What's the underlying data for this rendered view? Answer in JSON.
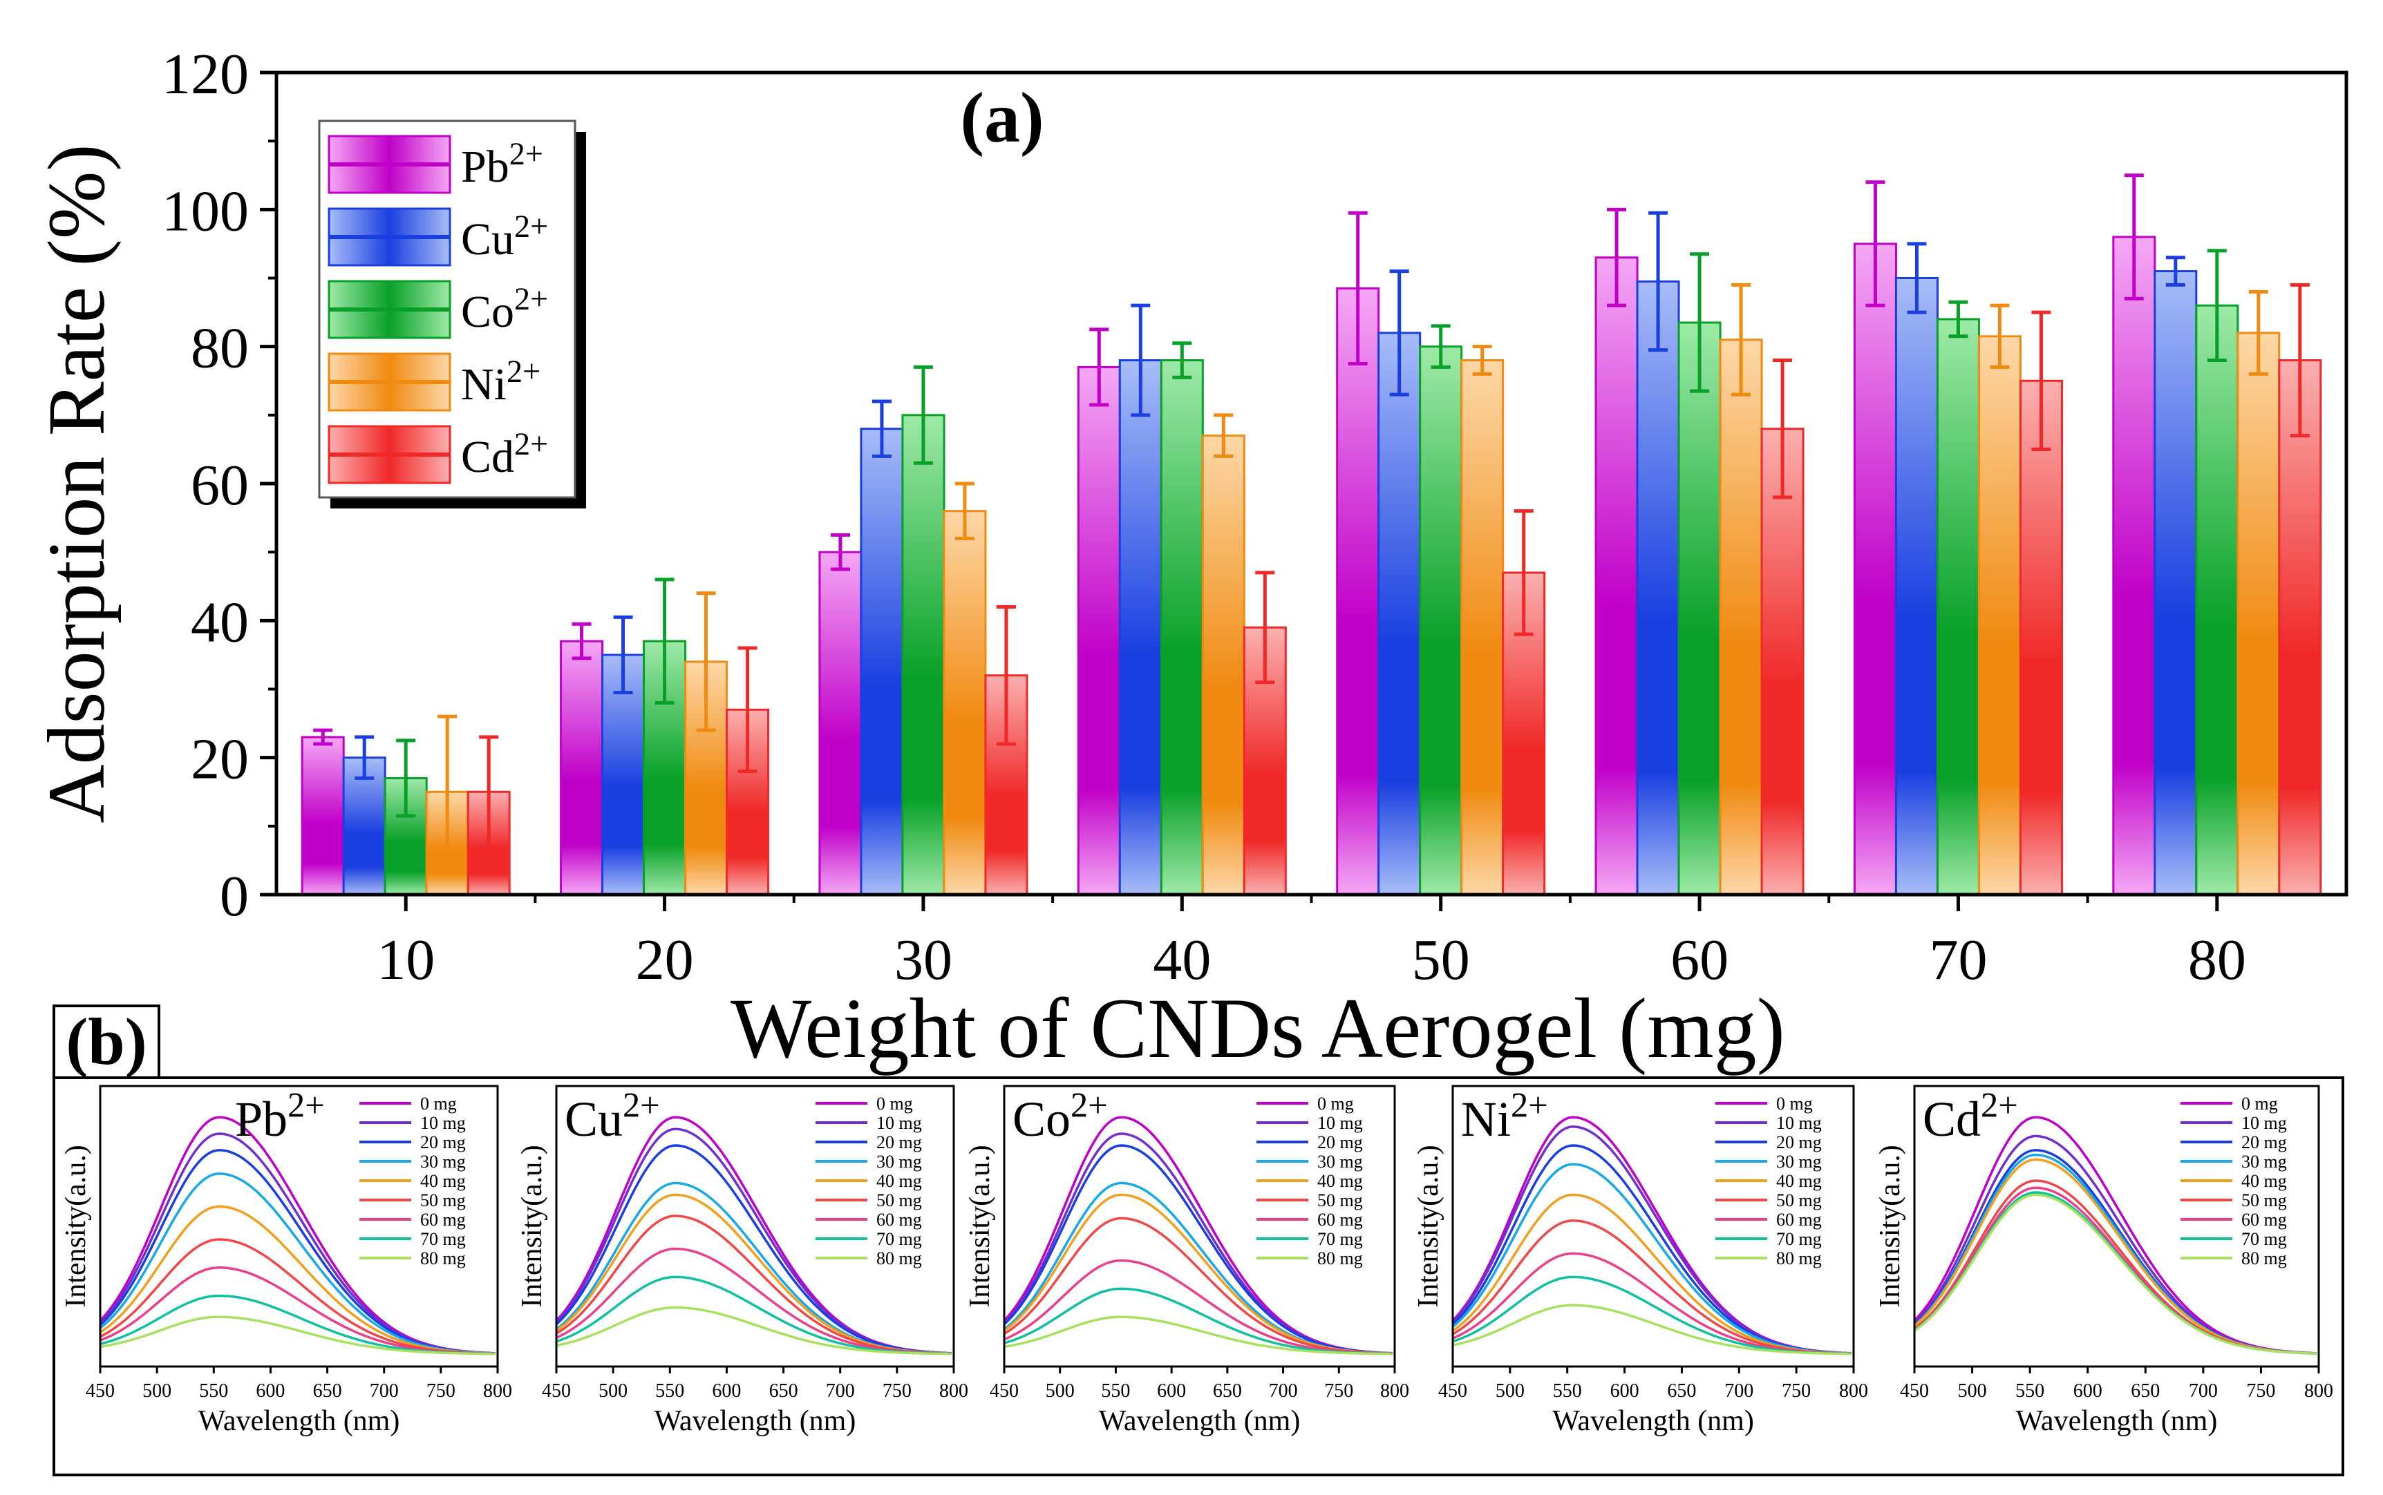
{
  "chart_data": [
    {
      "panel": "a",
      "type": "bar",
      "title": "(a)",
      "xlabel": "Weight of CNDs Aerogel (mg)",
      "ylabel": "Adsorption Rate (%)",
      "ylim": [
        0,
        120
      ],
      "yticks": [
        "0",
        "20",
        "40",
        "60",
        "80",
        "100",
        "120"
      ],
      "categories": [
        "10",
        "20",
        "30",
        "40",
        "50",
        "60",
        "70",
        "80"
      ],
      "legend_position": "top-left",
      "series": [
        {
          "name": "Pb",
          "charge": "2+",
          "color": "#c000c8",
          "light": "#f5a8f5",
          "values": [
            23,
            37,
            50,
            77,
            88.5,
            93,
            95,
            96
          ],
          "errors": [
            1,
            2.5,
            2.5,
            5.5,
            11,
            7,
            9,
            9
          ]
        },
        {
          "name": "Cu",
          "charge": "2+",
          "color": "#1a3fe0",
          "light": "#a8bdf8",
          "values": [
            20,
            35,
            68,
            78,
            82,
            89.5,
            90,
            91
          ],
          "errors": [
            3,
            5.5,
            4,
            8,
            9,
            10,
            5,
            2
          ]
        },
        {
          "name": "Co",
          "charge": "2+",
          "color": "#08a028",
          "light": "#9eeaa8",
          "values": [
            17,
            37,
            70,
            78,
            80,
            83.5,
            84,
            86
          ],
          "errors": [
            5.5,
            9,
            7,
            2.5,
            3,
            10,
            2.5,
            8
          ]
        },
        {
          "name": "Ni",
          "charge": "2+",
          "color": "#f08a10",
          "light": "#fdd8a8",
          "values": [
            15,
            34,
            56,
            67,
            78,
            81,
            81.5,
            82
          ],
          "errors": [
            11,
            10,
            4,
            3,
            2,
            8,
            4.5,
            6
          ]
        },
        {
          "name": "Cd",
          "charge": "2+",
          "color": "#f02828",
          "light": "#fbb0b0",
          "values": [
            15,
            27,
            32,
            39,
            47,
            68,
            75,
            78
          ],
          "errors": [
            8,
            9,
            10,
            8,
            9,
            10,
            10,
            11
          ]
        }
      ]
    },
    {
      "panel": "b",
      "type": "line",
      "panel_label": "(b)",
      "xlabel": "Wavelength (nm)",
      "ylabel": "Intensity(a.u.)",
      "xlim": [
        450,
        800
      ],
      "xticks": [
        "450",
        "500",
        "550",
        "600",
        "650",
        "700",
        "750",
        "800"
      ],
      "peak_nm": 555,
      "legend_labels": [
        "0 mg",
        "10 mg",
        "20 mg",
        "30 mg",
        "40 mg",
        "50 mg",
        "60 mg",
        "70 mg",
        "80 mg"
      ],
      "line_colors": [
        "#c000c8",
        "#7030d0",
        "#1a3fe0",
        "#18a8e8",
        "#f0a020",
        "#f04848",
        "#e8408a",
        "#10c0a0",
        "#a8e060"
      ],
      "subplots": [
        {
          "ion": "Pb",
          "charge": "2+",
          "peaks": [
            1.0,
            0.93,
            0.86,
            0.76,
            0.62,
            0.48,
            0.36,
            0.24,
            0.15
          ]
        },
        {
          "ion": "Cu",
          "charge": "2+",
          "peaks": [
            1.0,
            0.95,
            0.88,
            0.72,
            0.67,
            0.58,
            0.44,
            0.32,
            0.19
          ]
        },
        {
          "ion": "Co",
          "charge": "2+",
          "peaks": [
            1.0,
            0.93,
            0.88,
            0.72,
            0.67,
            0.57,
            0.39,
            0.27,
            0.15
          ]
        },
        {
          "ion": "Ni",
          "charge": "2+",
          "peaks": [
            1.0,
            0.96,
            0.88,
            0.8,
            0.67,
            0.56,
            0.42,
            0.32,
            0.2
          ]
        },
        {
          "ion": "Cd",
          "charge": "2+",
          "peaks": [
            1.0,
            0.92,
            0.86,
            0.84,
            0.82,
            0.73,
            0.7,
            0.68,
            0.67
          ]
        }
      ]
    }
  ]
}
